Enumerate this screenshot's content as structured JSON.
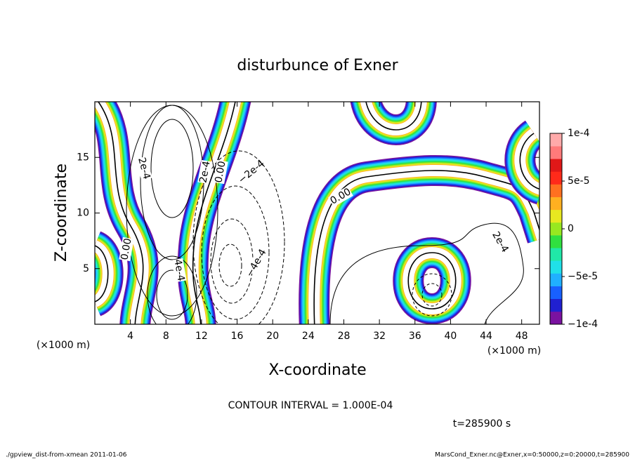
{
  "chart_data": {
    "type": "contour",
    "title": "disturbunce of Exner",
    "xlabel": "X-coordinate",
    "ylabel": "Z-coordinate",
    "xunit": "(×1000 m)",
    "yunit": "(×1000 m)",
    "xlim": [
      0,
      50
    ],
    "ylim": [
      0,
      20
    ],
    "xticks": [
      4,
      8,
      12,
      16,
      20,
      24,
      28,
      32,
      36,
      40,
      44,
      48
    ],
    "yticks": [
      5,
      10,
      15
    ],
    "clim": [
      -0.0001,
      0.0001
    ],
    "cticks": [
      {
        "value": -0.0001,
        "label": "−1e-4"
      },
      {
        "value": -5e-05,
        "label": "−5e-5"
      },
      0,
      {
        "value": 5e-05,
        "label": "5e-5"
      },
      {
        "value": 0.0001,
        "label": "1e-4"
      }
    ],
    "colormap": [
      "#7a12a0",
      "#2020d0",
      "#1860ff",
      "#20b0ff",
      "#20e0e8",
      "#20e8a8",
      "#30e040",
      "#98e820",
      "#e8e820",
      "#ffb020",
      "#ff7020",
      "#ff2a1a",
      "#e01818",
      "#ff7a7a",
      "#ffaaaa"
    ],
    "contour_labels": [
      "2e-4",
      "2e-4",
      "0.00",
      "0.00",
      "−2e-4",
      "4e-4",
      "−4e-4",
      "0.00",
      "2e-4"
    ],
    "note": "CONTOUR INTERVAL = 1.000E-04",
    "time_label": "t=285900 s",
    "footer_left": "./gpview_dist-from-xmean  2011-01-06",
    "footer_right": "MarsCond_Exner.nc@Exner,x=0:50000,z=0:20000,t=285900"
  }
}
